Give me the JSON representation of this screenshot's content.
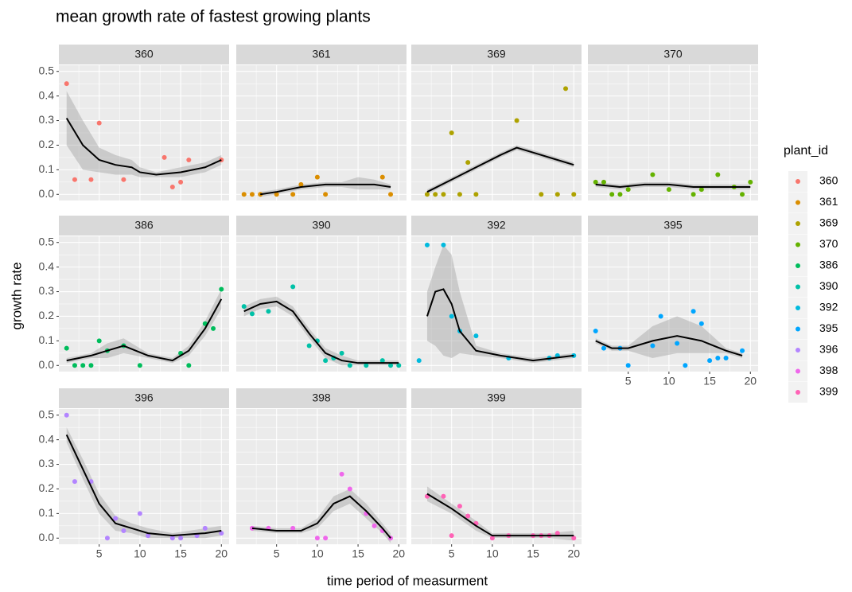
{
  "chart_data": {
    "type": "scatter",
    "title": "mean growth rate of fastest growing plants",
    "x_label": "time period of measurment",
    "y_label": "growth rate",
    "legend_title": "plant_id",
    "xlim": [
      0.05,
      20.95
    ],
    "ylim": [
      -0.025,
      0.525
    ],
    "xticks": [
      5,
      10,
      15,
      20
    ],
    "yticks": [
      {
        "value": 0,
        "label": "0.0"
      },
      0.1,
      0.2,
      0.3,
      0.4,
      0.5
    ],
    "grid": true,
    "panels": [
      {
        "name": "360",
        "color": "#F8766D",
        "x": [
          1,
          2,
          4,
          5,
          8,
          13,
          14,
          15,
          16,
          20
        ],
        "values": [
          0.45,
          0.06,
          0.06,
          0.29,
          0.06,
          0.15,
          0.03,
          0.05,
          0.14,
          0.14
        ],
        "smooth": {
          "x": [
            1,
            3,
            5,
            7,
            9,
            10,
            12,
            15,
            18,
            20
          ],
          "y": [
            0.31,
            0.2,
            0.14,
            0.12,
            0.11,
            0.09,
            0.08,
            0.09,
            0.11,
            0.14
          ],
          "lower": [
            0.2,
            0.1,
            0.09,
            0.08,
            0.08,
            0.07,
            0.07,
            0.07,
            0.09,
            0.12
          ],
          "upper": [
            0.42,
            0.3,
            0.19,
            0.16,
            0.14,
            0.11,
            0.09,
            0.11,
            0.13,
            0.16
          ]
        }
      },
      {
        "name": "361",
        "color": "#DB8E00",
        "x": [
          1,
          2,
          3,
          5,
          7,
          8,
          10,
          11,
          18,
          19
        ],
        "values": [
          0,
          0,
          0,
          0,
          0,
          0.04,
          0.07,
          0,
          0.07,
          0
        ],
        "smooth": {
          "x": [
            3,
            5,
            8,
            11,
            13,
            15,
            17,
            19
          ],
          "y": [
            0,
            0.01,
            0.03,
            0.04,
            0.04,
            0.04,
            0.04,
            0.03
          ],
          "lower": [
            -0.01,
            0,
            0.02,
            0.03,
            0.03,
            0.02,
            0.02,
            0.02
          ],
          "upper": [
            0.01,
            0.02,
            0.04,
            0.05,
            0.05,
            0.07,
            0.06,
            0.04
          ]
        }
      },
      {
        "name": "369",
        "color": "#AEA200",
        "x": [
          2,
          3,
          4,
          5,
          6,
          7,
          8,
          13,
          16,
          18,
          19,
          20
        ],
        "values": [
          0,
          0,
          0,
          0.25,
          0,
          0.13,
          0,
          0.3,
          0,
          0,
          0.43,
          0
        ],
        "smooth": {
          "x": [
            2,
            5,
            8,
            11,
            13,
            15,
            18,
            20
          ],
          "y": [
            0.01,
            0.06,
            0.11,
            0.16,
            0.19,
            0.17,
            0.14,
            0.12
          ],
          "lower": [
            0,
            0.05,
            0.1,
            0.15,
            0.18,
            0.16,
            0.13,
            0.11
          ],
          "upper": [
            0.02,
            0.07,
            0.12,
            0.17,
            0.2,
            0.18,
            0.15,
            0.13
          ]
        }
      },
      {
        "name": "370",
        "color": "#64B200",
        "x": [
          1,
          2,
          3,
          4,
          5,
          8,
          10,
          13,
          14,
          16,
          18,
          19,
          20
        ],
        "values": [
          0.05,
          0.05,
          0,
          0,
          0.02,
          0.08,
          0.02,
          0,
          0.02,
          0.08,
          0.03,
          0,
          0.05
        ],
        "smooth": {
          "x": [
            1,
            4,
            7,
            10,
            13,
            16,
            20
          ],
          "y": [
            0.04,
            0.03,
            0.04,
            0.04,
            0.03,
            0.03,
            0.03
          ],
          "lower": [
            0.03,
            0.02,
            0.03,
            0.03,
            0.02,
            0.02,
            0.02
          ],
          "upper": [
            0.05,
            0.04,
            0.05,
            0.05,
            0.04,
            0.04,
            0.04
          ]
        }
      },
      {
        "name": "386",
        "color": "#00BD5C",
        "x": [
          1,
          2,
          3,
          4,
          5,
          6,
          8,
          10,
          15,
          16,
          18,
          19,
          20
        ],
        "values": [
          0.07,
          0,
          0,
          0,
          0.1,
          0.06,
          0.08,
          0,
          0.05,
          0,
          0.17,
          0.15,
          0.31
        ],
        "smooth": {
          "x": [
            1,
            4,
            6,
            8,
            11,
            14,
            16,
            18,
            20
          ],
          "y": [
            0.02,
            0.04,
            0.06,
            0.08,
            0.04,
            0.02,
            0.06,
            0.15,
            0.27
          ],
          "lower": [
            0.01,
            0.03,
            0.03,
            0.05,
            0.03,
            0.01,
            0.04,
            0.12,
            0.23
          ],
          "upper": [
            0.03,
            0.05,
            0.09,
            0.11,
            0.05,
            0.03,
            0.08,
            0.18,
            0.31
          ]
        }
      },
      {
        "name": "390",
        "color": "#00C1A7",
        "x": [
          1,
          2,
          4,
          7,
          9,
          10,
          11,
          12,
          13,
          14,
          16,
          18,
          19,
          20
        ],
        "values": [
          0.24,
          0.21,
          0.22,
          0.32,
          0.08,
          0.1,
          0.02,
          0.03,
          0.05,
          0,
          0,
          0.02,
          0,
          0
        ],
        "smooth": {
          "x": [
            1,
            3,
            5,
            7,
            9,
            11,
            13,
            15,
            20
          ],
          "y": [
            0.22,
            0.25,
            0.26,
            0.22,
            0.13,
            0.05,
            0.02,
            0.01,
            0.01
          ],
          "lower": [
            0.2,
            0.23,
            0.24,
            0.2,
            0.11,
            0.03,
            0,
            0,
            0
          ],
          "upper": [
            0.24,
            0.27,
            0.28,
            0.24,
            0.15,
            0.07,
            0.04,
            0.02,
            0.02
          ]
        }
      },
      {
        "name": "392",
        "color": "#00BADE",
        "x": [
          1,
          2,
          4,
          5,
          6,
          8,
          12,
          17,
          18,
          20
        ],
        "values": [
          0.02,
          0.49,
          0.49,
          0.2,
          0.14,
          0.12,
          0.03,
          0.03,
          0.04,
          0.04
        ],
        "smooth": {
          "x": [
            2,
            3,
            4,
            5,
            6,
            8,
            11,
            15,
            20
          ],
          "y": [
            0.2,
            0.3,
            0.31,
            0.25,
            0.14,
            0.06,
            0.04,
            0.02,
            0.04
          ],
          "lower": [
            0.1,
            0.08,
            0.04,
            0.03,
            0.05,
            0.04,
            0.03,
            0.01,
            0.03
          ],
          "upper": [
            0.3,
            0.4,
            0.49,
            0.45,
            0.3,
            0.08,
            0.05,
            0.03,
            0.05
          ]
        }
      },
      {
        "name": "395",
        "color": "#00A6FF",
        "x": [
          1,
          2,
          4,
          5,
          8,
          9,
          11,
          12,
          13,
          14,
          15,
          16,
          17,
          19
        ],
        "values": [
          0.14,
          0.07,
          0.07,
          0,
          0.08,
          0.2,
          0.09,
          0,
          0.22,
          0.17,
          0.02,
          0.03,
          0.03,
          0.06
        ],
        "smooth": {
          "x": [
            1,
            3,
            5,
            8,
            11,
            14,
            17,
            19
          ],
          "y": [
            0.1,
            0.07,
            0.07,
            0.1,
            0.12,
            0.1,
            0.06,
            0.04
          ],
          "lower": [
            0.09,
            0.06,
            0.06,
            0.03,
            0.05,
            0.05,
            0.05,
            0.03
          ],
          "upper": [
            0.11,
            0.08,
            0.08,
            0.16,
            0.2,
            0.16,
            0.07,
            0.05
          ]
        }
      },
      {
        "name": "396",
        "color": "#B385FF",
        "x": [
          1,
          2,
          4,
          6,
          7,
          8,
          10,
          11,
          14,
          15,
          17,
          18,
          20
        ],
        "values": [
          0.5,
          0.23,
          0.23,
          0,
          0.08,
          0.03,
          0.1,
          0.01,
          0,
          0,
          0.01,
          0.04,
          0.02
        ],
        "smooth": {
          "x": [
            1,
            3,
            5,
            7,
            9,
            11,
            14,
            18,
            20
          ],
          "y": [
            0.42,
            0.28,
            0.14,
            0.06,
            0.04,
            0.02,
            0.01,
            0.02,
            0.03
          ],
          "lower": [
            0.39,
            0.24,
            0.1,
            0.03,
            0.02,
            0,
            0,
            0,
            0.01
          ],
          "upper": [
            0.45,
            0.32,
            0.18,
            0.09,
            0.06,
            0.04,
            0.02,
            0.04,
            0.05
          ]
        }
      },
      {
        "name": "398",
        "color": "#EF67EB",
        "x": [
          2,
          4,
          7,
          10,
          11,
          13,
          14,
          16,
          17,
          18,
          19
        ],
        "values": [
          0.04,
          0.04,
          0.04,
          0,
          0,
          0.26,
          0.2,
          0.1,
          0.05,
          0.03,
          0
        ],
        "smooth": {
          "x": [
            2,
            5,
            8,
            10,
            12,
            14,
            16,
            18,
            19
          ],
          "y": [
            0.04,
            0.03,
            0.03,
            0.06,
            0.14,
            0.17,
            0.11,
            0.04,
            0
          ],
          "lower": [
            0.03,
            0.02,
            0.02,
            0.04,
            0.11,
            0.14,
            0.08,
            0.02,
            -0.02
          ],
          "upper": [
            0.05,
            0.04,
            0.04,
            0.08,
            0.17,
            0.2,
            0.14,
            0.06,
            0.02
          ]
        }
      },
      {
        "name": "399",
        "color": "#FF63B6",
        "x": [
          2,
          4,
          5,
          6,
          7,
          8,
          10,
          12,
          15,
          16,
          17,
          18,
          20
        ],
        "values": [
          0.17,
          0.17,
          0.01,
          0.13,
          0.09,
          0.06,
          0,
          0.01,
          0.01,
          0.01,
          0.01,
          0.02,
          0
        ],
        "smooth": {
          "x": [
            2,
            5,
            8,
            10,
            13,
            17,
            20
          ],
          "y": [
            0.18,
            0.12,
            0.05,
            0.01,
            0.01,
            0.01,
            0.01
          ],
          "lower": [
            0.15,
            0.1,
            0.03,
            0,
            0,
            0,
            -0.01
          ],
          "upper": [
            0.21,
            0.14,
            0.07,
            0.02,
            0.02,
            0.02,
            0.03
          ]
        }
      }
    ]
  }
}
